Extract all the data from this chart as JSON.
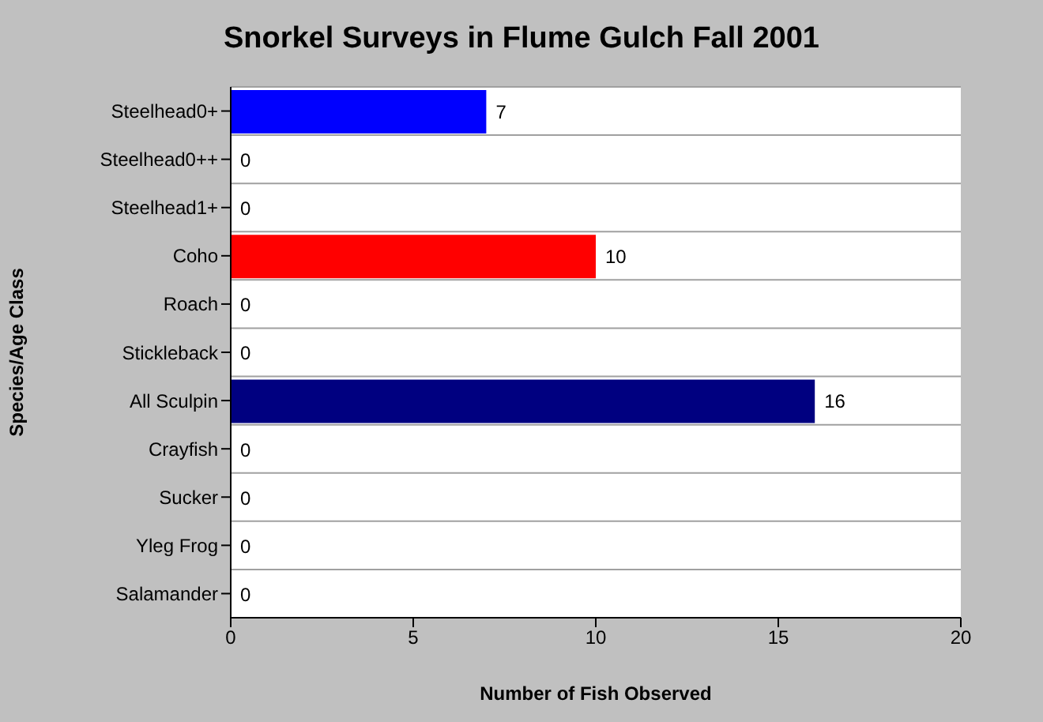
{
  "chart_data": {
    "type": "bar",
    "orientation": "horizontal",
    "title": "Snorkel Surveys in Flume Gulch Fall 2001",
    "xlabel": "Number of Fish Observed",
    "ylabel": "Species/Age Class",
    "categories": [
      "Steelhead0+",
      "Steelhead0++",
      "Steelhead1+",
      "Coho",
      "Roach",
      "Stickleback",
      "All Sculpin",
      "Crayfish",
      "Sucker",
      "Yleg Frog",
      "Salamander"
    ],
    "values": [
      7,
      0,
      0,
      10,
      0,
      0,
      16,
      0,
      0,
      0,
      0
    ],
    "colors": [
      "#0000ff",
      "#00ffff",
      "#00ff00",
      "#ff0000",
      "#ff00ff",
      "#ffff00",
      "#000080",
      "#008080",
      "#008000",
      "#800000",
      "#800080"
    ],
    "xlim": [
      0,
      20
    ],
    "xticks": [
      0,
      5,
      10,
      15,
      20
    ],
    "grid": "y",
    "data_labels": true
  }
}
